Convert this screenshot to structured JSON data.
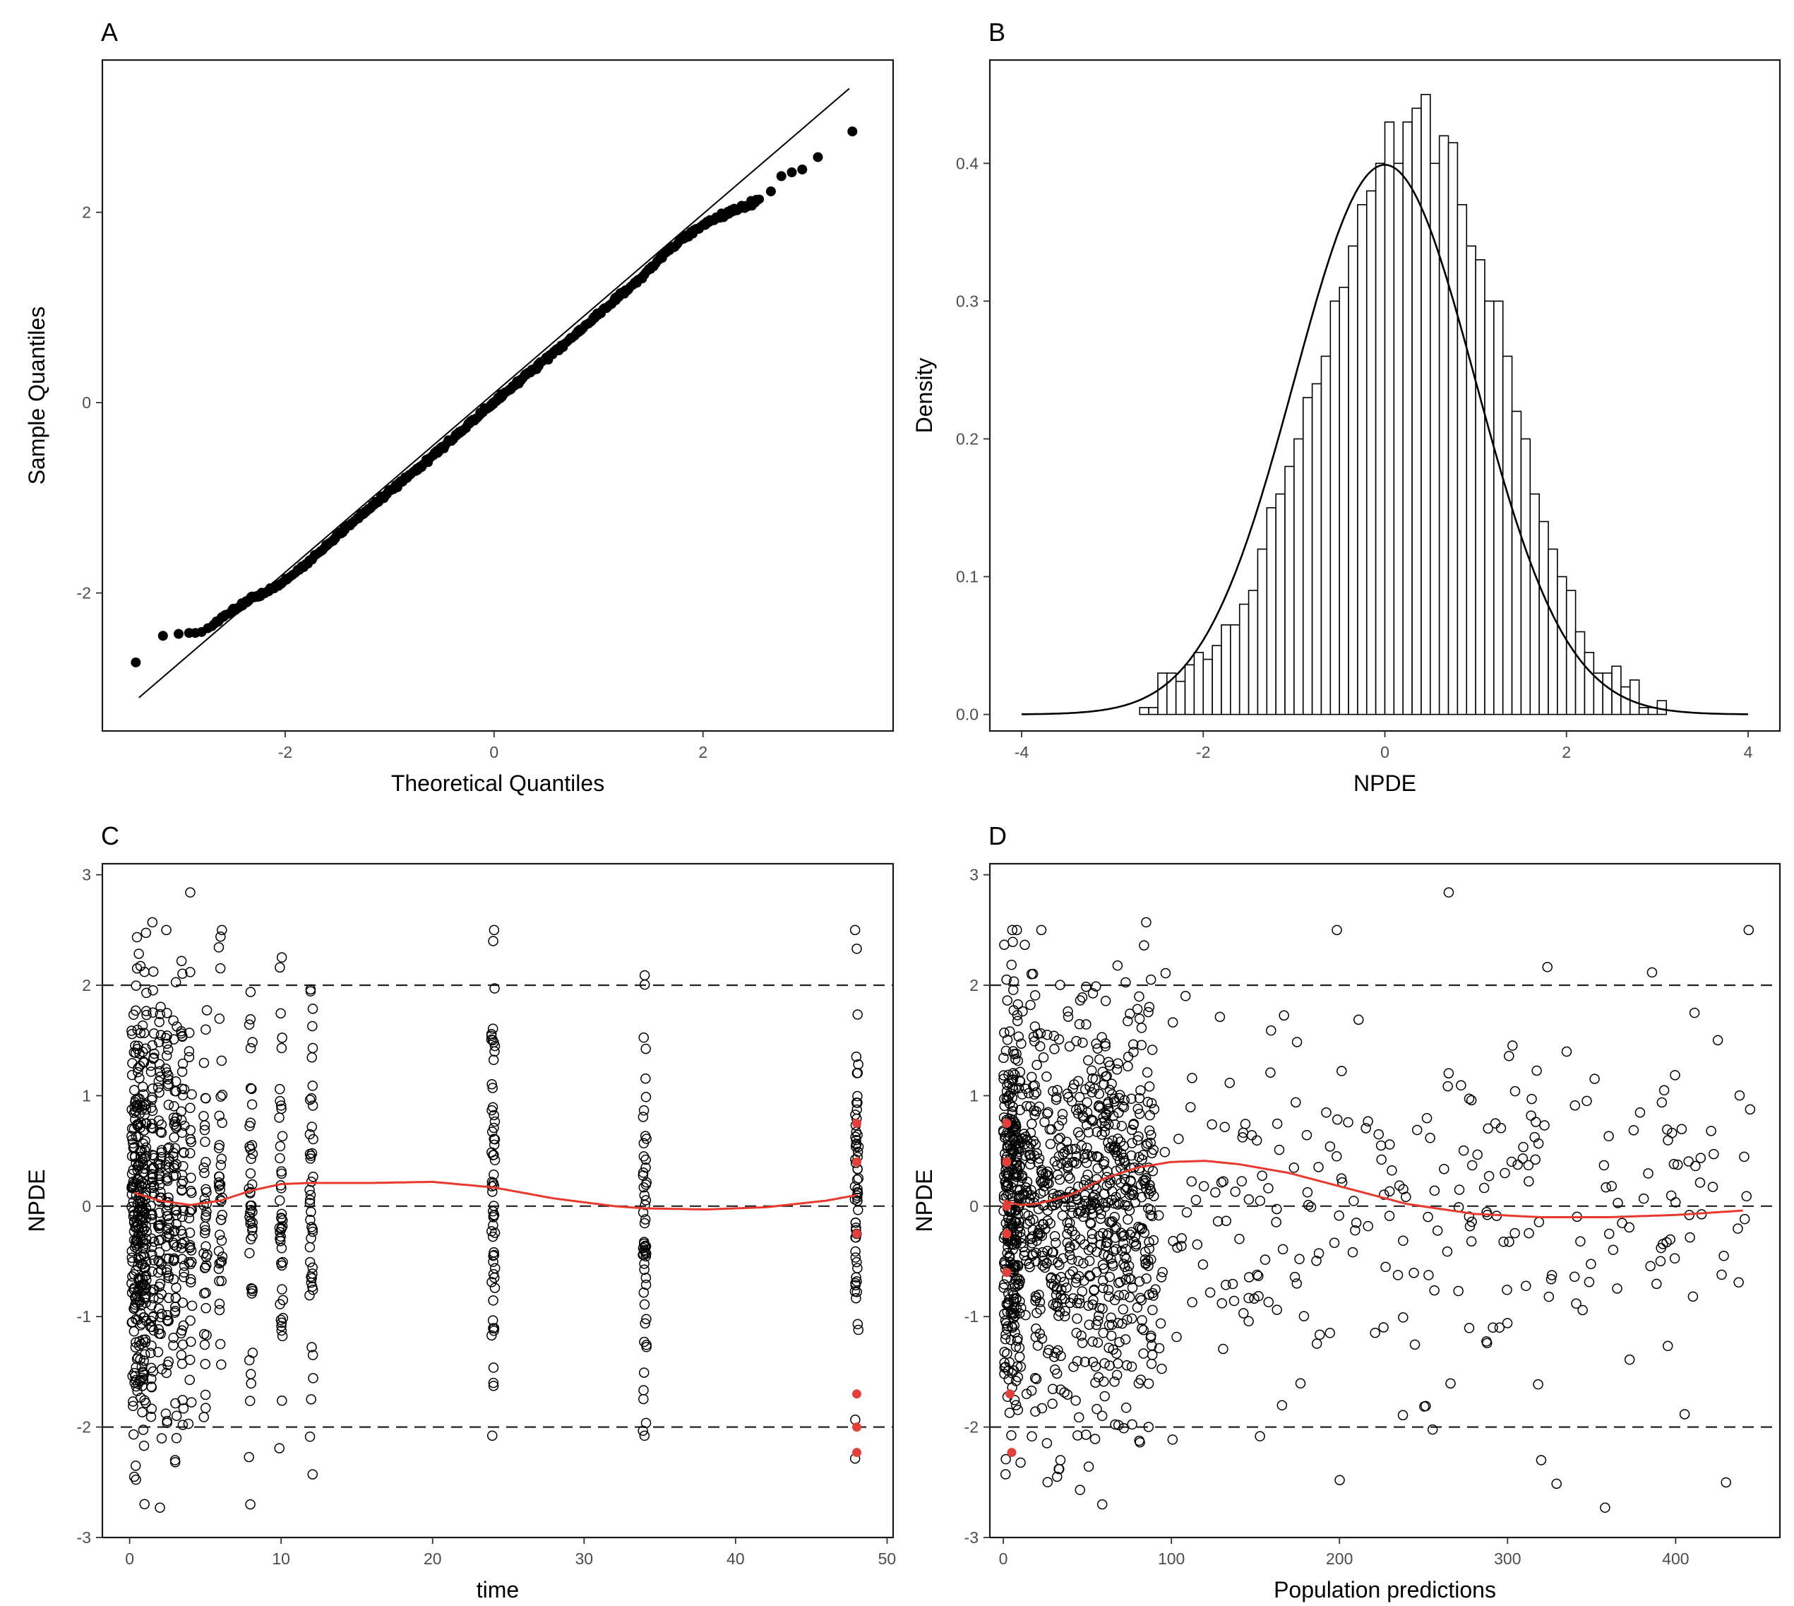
{
  "figure": {
    "panel_tags": [
      "A",
      "B",
      "C",
      "D"
    ]
  },
  "chart_data": [
    {
      "panel": "A",
      "type": "scatter",
      "title": "",
      "xlabel": "Theoretical Quantiles",
      "ylabel": "Sample Quantiles",
      "xlim": [
        -3.75,
        3.82
      ],
      "ylim": [
        -3.45,
        3.6
      ],
      "xticks": [
        -2,
        0,
        2
      ],
      "yticks": [
        -2,
        0,
        2
      ],
      "grid": false,
      "reference_line": {
        "x": [
          -3.4,
          3.4
        ],
        "y": [
          -3.1,
          3.3
        ]
      },
      "series": [
        {
          "name": "Q-Q points",
          "style": "filled-black",
          "x": [
            -3.43,
            -3.17,
            -3.02,
            -2.92,
            -2.86,
            -2.8,
            -2.74,
            -2.65,
            -2.55,
            -2.45,
            -2.35,
            -2.2,
            -2.0,
            -1.8,
            -1.6,
            -1.4,
            -1.2,
            -1.0,
            -0.8,
            -0.6,
            -0.4,
            -0.2,
            0.0,
            0.2,
            0.4,
            0.6,
            0.8,
            1.0,
            1.2,
            1.4,
            1.6,
            1.8,
            2.0,
            2.2,
            2.4,
            2.55,
            2.65,
            2.75,
            2.85,
            2.95,
            3.1,
            3.43
          ],
          "y": [
            -2.73,
            -2.45,
            -2.43,
            -2.42,
            -2.42,
            -2.41,
            -2.37,
            -2.3,
            -2.22,
            -2.15,
            -2.08,
            -2.0,
            -1.87,
            -1.7,
            -1.5,
            -1.3,
            -1.12,
            -0.93,
            -0.75,
            -0.57,
            -0.38,
            -0.19,
            0.0,
            0.19,
            0.37,
            0.55,
            0.74,
            0.93,
            1.12,
            1.3,
            1.53,
            1.72,
            1.87,
            1.97,
            2.06,
            2.14,
            2.22,
            2.38,
            2.42,
            2.45,
            2.58,
            2.85
          ]
        }
      ]
    },
    {
      "panel": "B",
      "type": "bar",
      "title": "",
      "xlabel": "NPDE",
      "ylabel": "Density",
      "xlim": [
        -4.35,
        4.35
      ],
      "ylim": [
        -0.012,
        0.475
      ],
      "xticks": [
        -4,
        -2,
        0,
        2,
        4
      ],
      "yticks": [
        0.0,
        0.1,
        0.2,
        0.3,
        0.4
      ],
      "ytick_labels": [
        "0.0",
        "0.1",
        "0.2",
        "0.3",
        "0.4"
      ],
      "grid": false,
      "histogram": {
        "bin_start": -2.7,
        "bin_width": 0.1,
        "densities": [
          0.005,
          0.005,
          0.03,
          0.03,
          0.024,
          0.036,
          0.045,
          0.04,
          0.05,
          0.065,
          0.065,
          0.08,
          0.09,
          0.12,
          0.15,
          0.16,
          0.18,
          0.2,
          0.23,
          0.24,
          0.26,
          0.3,
          0.31,
          0.34,
          0.37,
          0.38,
          0.4,
          0.43,
          0.4,
          0.43,
          0.44,
          0.45,
          0.4,
          0.42,
          0.415,
          0.37,
          0.34,
          0.33,
          0.3,
          0.3,
          0.26,
          0.22,
          0.2,
          0.16,
          0.14,
          0.12,
          0.1,
          0.09,
          0.06,
          0.045,
          0.03,
          0.03,
          0.035,
          0.02,
          0.025,
          0.005,
          0.005,
          0.01
        ]
      },
      "overlay": {
        "name": "Standard normal density",
        "mean": 0,
        "sd": 1,
        "xrange": [
          -4,
          4
        ]
      }
    },
    {
      "panel": "C",
      "type": "scatter",
      "title": "",
      "xlabel": "time",
      "ylabel": "NPDE",
      "xlim": [
        -1.8,
        50.4
      ],
      "ylim": [
        -3.0,
        3.1
      ],
      "xticks": [
        0,
        10,
        20,
        30,
        40,
        50
      ],
      "yticks": [
        -3,
        -2,
        -1,
        0,
        1,
        2,
        3
      ],
      "grid": false,
      "reference_lines": [
        -2,
        0,
        2
      ],
      "observation_times": [
        0.25,
        0.5,
        0.75,
        1,
        1.5,
        2,
        2.5,
        3,
        3.5,
        4,
        5,
        6,
        8,
        10,
        12,
        24,
        34,
        48
      ],
      "highlighted_points": {
        "color": "#e0413a",
        "x": [
          48,
          48,
          48,
          48,
          48,
          48
        ],
        "y": [
          0.75,
          0.4,
          -0.25,
          -1.7,
          -2.0,
          -2.23
        ]
      },
      "smooth_curve": {
        "color": "#e8392e",
        "x": [
          0.3,
          2,
          4,
          6,
          8,
          10,
          12,
          16,
          20,
          24,
          28,
          32,
          34,
          38,
          42,
          46,
          48
        ],
        "y": [
          0.12,
          0.05,
          0.01,
          0.05,
          0.14,
          0.2,
          0.21,
          0.21,
          0.22,
          0.17,
          0.07,
          0.0,
          -0.02,
          -0.03,
          -0.01,
          0.05,
          0.1
        ]
      }
    },
    {
      "panel": "D",
      "type": "scatter",
      "title": "",
      "xlabel": "Population predictions",
      "ylabel": "NPDE",
      "xlim": [
        -8,
        462
      ],
      "ylim": [
        -3.0,
        3.1
      ],
      "xticks": [
        0,
        100,
        200,
        300,
        400
      ],
      "yticks": [
        -3,
        -2,
        -1,
        0,
        1,
        2,
        3
      ],
      "grid": false,
      "reference_lines": [
        -2,
        0,
        2
      ],
      "highlighted_points": {
        "color": "#e0413a",
        "x": [
          2,
          2,
          2,
          2,
          2,
          4,
          5
        ],
        "y": [
          0.75,
          0.4,
          0.0,
          -0.25,
          -0.6,
          -1.7,
          -2.23
        ]
      },
      "smooth_curve": {
        "color": "#e8392e",
        "x": [
          0,
          10,
          20,
          40,
          60,
          80,
          100,
          120,
          140,
          170,
          200,
          240,
          280,
          320,
          360,
          400,
          440
        ],
        "y": [
          0.05,
          0.01,
          0.02,
          0.1,
          0.25,
          0.35,
          0.4,
          0.41,
          0.38,
          0.3,
          0.18,
          0.02,
          -0.07,
          -0.1,
          -0.1,
          -0.08,
          -0.04
        ]
      }
    }
  ]
}
